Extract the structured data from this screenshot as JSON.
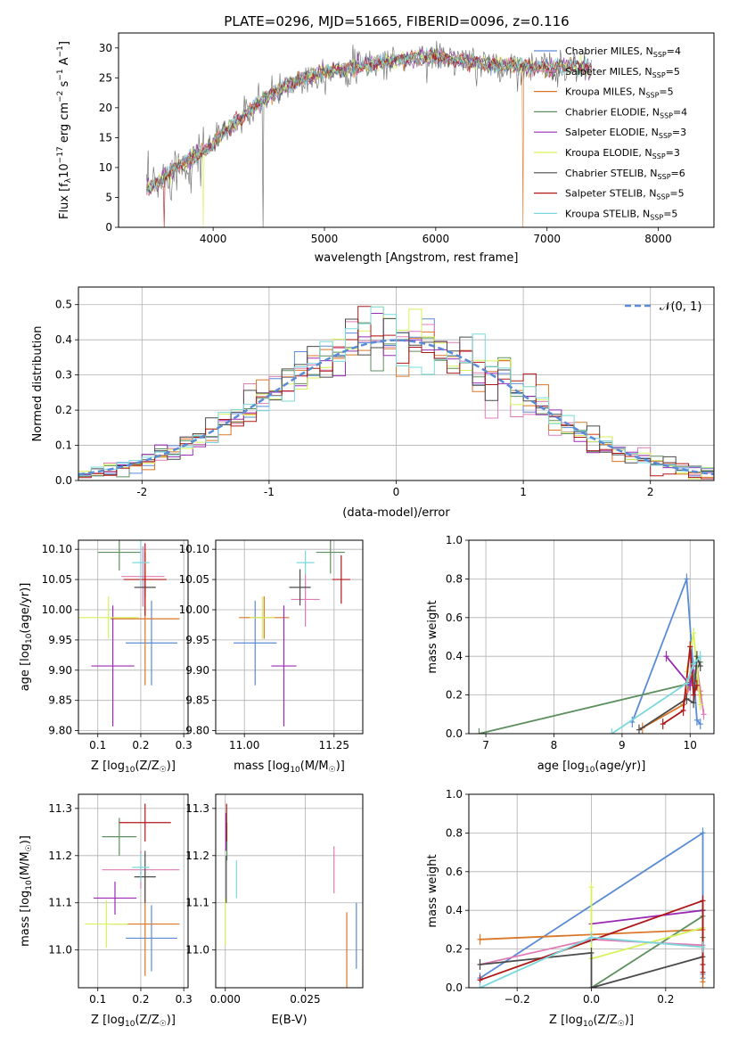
{
  "figure": {
    "title": "PLATE=0296, MJD=51665, FIBERID=0096, z=0.116"
  },
  "models": [
    {
      "name": "Chabrier MILES",
      "nssp": "4",
      "color": "#5a8bd6"
    },
    {
      "name": "Salpeter MILES",
      "nssp": "5",
      "color": "#e07bb5"
    },
    {
      "name": "Kroupa MILES",
      "nssp": "5",
      "color": "#d9772a"
    },
    {
      "name": "Chabrier ELODIE",
      "nssp": "4",
      "color": "#5e8f5e"
    },
    {
      "name": "Salpeter ELODIE",
      "nssp": "3",
      "color": "#9a2bb5"
    },
    {
      "name": "Kroupa ELODIE",
      "nssp": "3",
      "color": "#d6f25a"
    },
    {
      "name": "Chabrier STELIB",
      "nssp": "6",
      "color": "#4a4a4a"
    },
    {
      "name": "Salpeter STELIB",
      "nssp": "5",
      "color": "#b01818"
    },
    {
      "name": "Kroupa STELIB",
      "nssp": "5",
      "color": "#7ad8dc"
    }
  ],
  "chart_data": [
    {
      "id": "spectrum",
      "type": "line",
      "title": "PLATE=0296, MJD=51665, FIBERID=0096, z=0.116",
      "xlabel": "wavelength [Angstrom, rest frame]",
      "ylabel_main": "Flux [f",
      "ylabel_sub": "λ",
      "ylabel_rest": "10",
      "ylabel_exp1": "−17",
      "ylabel_mid": " erg cm",
      "ylabel_exp2": "−2",
      "ylabel_mid2": " s",
      "ylabel_exp3": "−1",
      "ylabel_mid3": " A",
      "ylabel_exp4": "−1",
      "ylabel_end": "]",
      "xlim": [
        3150,
        8500
      ],
      "ylim": [
        0,
        32.5
      ],
      "xticks": [
        4000,
        5000,
        6000,
        7000,
        8000
      ],
      "yticks": [
        0,
        5,
        10,
        15,
        20,
        25,
        30
      ],
      "continuum": {
        "wavelength": [
          3400,
          3500,
          3600,
          3700,
          3800,
          3900,
          4000,
          4100,
          4200,
          4300,
          4400,
          4500,
          4600,
          4700,
          4800,
          4900,
          5000,
          5200,
          5400,
          5600,
          5800,
          6000,
          6200,
          6400,
          6600,
          6800,
          7000,
          7200,
          7400
        ],
        "flux": [
          6.5,
          7.2,
          9.0,
          10.5,
          11.5,
          12.5,
          14.0,
          16.0,
          17.5,
          19.0,
          20.5,
          22.0,
          23.0,
          24.0,
          24.8,
          25.5,
          26.0,
          26.5,
          27.2,
          27.8,
          28.3,
          28.5,
          28.0,
          27.5,
          27.0,
          27.0,
          26.5,
          27.0,
          26.5
        ]
      },
      "legend_position": "upper right"
    },
    {
      "id": "residuals",
      "type": "step",
      "xlabel": "(data-model)/error",
      "ylabel": "Normed distribution",
      "xlim": [
        -2.5,
        2.5
      ],
      "ylim": [
        0,
        0.55
      ],
      "xticks": [
        -2,
        -1,
        0,
        1,
        2
      ],
      "yticks": [
        0.0,
        0.1,
        0.2,
        0.3,
        0.4,
        0.5
      ],
      "bin_width": 0.1,
      "reference_curve": "N(0,1)",
      "legend": "𝒩(0, 1)",
      "legend_position": "upper right",
      "grid": true
    },
    {
      "id": "age-vs-Z",
      "type": "errorbar",
      "xlabel": "Z [log",
      "xlabel_sub": "10",
      "xlabel_rest": "(Z/Z",
      "xlabel_sun": "☉",
      "xlabel_end": ")]",
      "ylabel": "age  [log",
      "ylabel_sub": "10",
      "ylabel_rest": "(age/yr)]",
      "xlim": [
        0.055,
        0.31
      ],
      "ylim": [
        9.795,
        10.115
      ],
      "xticks": [
        0.1,
        0.2,
        0.3
      ],
      "yticks": [
        9.8,
        9.85,
        9.9,
        9.95,
        10.0,
        10.05,
        10.1
      ],
      "points": [
        {
          "model": 0,
          "x": 0.225,
          "y": 9.945,
          "xerr": 0.06,
          "yerr": 0.07
        },
        {
          "model": 1,
          "x": 0.205,
          "y": 10.055,
          "xerr": 0.05,
          "yerr": 0.05
        },
        {
          "model": 2,
          "x": 0.21,
          "y": 9.985,
          "xerr": 0.08,
          "yerr": 0.11
        },
        {
          "model": 3,
          "x": 0.15,
          "y": 10.095,
          "xerr": 0.05,
          "yerr": 0.03
        },
        {
          "model": 4,
          "x": 0.135,
          "y": 9.907,
          "xerr": 0.05,
          "yerr": 0.1
        },
        {
          "model": 5,
          "x": 0.125,
          "y": 9.987,
          "xerr": 0.07,
          "yerr": 0.035
        },
        {
          "model": 6,
          "x": 0.21,
          "y": 10.037,
          "xerr": 0.025,
          "yerr": 0.015
        },
        {
          "model": 7,
          "x": 0.21,
          "y": 10.05,
          "xerr": 0.05,
          "yerr": 0.06
        },
        {
          "model": 8,
          "x": 0.2,
          "y": 10.078,
          "xerr": 0.02,
          "yerr": 0.04
        }
      ],
      "grid": true
    },
    {
      "id": "age-vs-mass",
      "type": "errorbar",
      "xlabel": "mass [log",
      "xlabel_sub": "10",
      "xlabel_rest": "(M/M",
      "xlabel_sun": "☉",
      "xlabel_end": ")]",
      "xlim": [
        10.92,
        11.33
      ],
      "ylim": [
        9.795,
        10.115
      ],
      "xticks": [
        11.0,
        11.25
      ],
      "xticklabels": [
        "11.00",
        "11.25"
      ],
      "yticks": [
        9.8,
        9.85,
        9.9,
        9.95,
        10.0,
        10.05,
        10.1
      ],
      "points": [
        {
          "model": 0,
          "x": 11.03,
          "y": 9.945,
          "xerr": 0.06,
          "yerr": 0.07
        },
        {
          "model": 1,
          "x": 11.17,
          "y": 10.017,
          "xerr": 0.04,
          "yerr": 0.045
        },
        {
          "model": 2,
          "x": 11.055,
          "y": 9.987,
          "xerr": 0.07,
          "yerr": 0.035
        },
        {
          "model": 3,
          "x": 11.24,
          "y": 10.095,
          "xerr": 0.04,
          "yerr": 0.035
        },
        {
          "model": 4,
          "x": 11.11,
          "y": 9.907,
          "xerr": 0.035,
          "yerr": 0.1
        },
        {
          "model": 5,
          "x": 11.05,
          "y": 9.987,
          "xerr": 0.035,
          "yerr": 0.035
        },
        {
          "model": 6,
          "x": 11.155,
          "y": 10.037,
          "xerr": 0.03,
          "yerr": 0.03
        },
        {
          "model": 7,
          "x": 11.27,
          "y": 10.05,
          "xerr": 0.025,
          "yerr": 0.04
        },
        {
          "model": 8,
          "x": 11.17,
          "y": 10.078,
          "xerr": 0.025,
          "yerr": 0.02
        }
      ],
      "grid": true
    },
    {
      "id": "weight-vs-age",
      "type": "line",
      "xlabel": "age  [log",
      "xlabel_sub": "10",
      "xlabel_rest": "(age/yr)]",
      "ylabel": "mass weight",
      "xlim": [
        6.75,
        10.35
      ],
      "ylim": [
        0,
        1.0
      ],
      "xticks": [
        7,
        8,
        9,
        10
      ],
      "yticks": [
        0.0,
        0.2,
        0.4,
        0.6,
        0.8,
        1.0
      ],
      "series": [
        {
          "model": 0,
          "x": [
            9.15,
            9.95,
            10.1,
            10.15
          ],
          "y": [
            0.06,
            0.8,
            0.07,
            0.05
          ]
        },
        {
          "model": 1,
          "x": [
            9.9,
            10.0,
            10.1,
            10.15,
            10.2
          ],
          "y": [
            0.15,
            0.25,
            0.35,
            0.22,
            0.1
          ]
        },
        {
          "model": 2,
          "x": [
            9.3,
            9.9,
            10.0,
            10.1,
            10.15
          ],
          "y": [
            0.03,
            0.15,
            0.28,
            0.27,
            0.2
          ]
        },
        {
          "model": 3,
          "x": [
            6.9,
            10.0,
            10.15
          ],
          "y": [
            0.0,
            0.26,
            0.37
          ]
        },
        {
          "model": 4,
          "x": [
            9.65,
            10.0,
            10.05
          ],
          "y": [
            0.4,
            0.25,
            0.35
          ]
        },
        {
          "model": 5,
          "x": [
            9.95,
            10.05,
            10.15
          ],
          "y": [
            0.32,
            0.52,
            0.15
          ]
        },
        {
          "model": 6,
          "x": [
            9.25,
            9.95,
            10.05,
            10.1,
            10.15
          ],
          "y": [
            0.02,
            0.18,
            0.16,
            0.4,
            0.35
          ]
        },
        {
          "model": 7,
          "x": [
            9.6,
            9.9,
            10.0,
            10.05,
            10.1
          ],
          "y": [
            0.05,
            0.12,
            0.45,
            0.2,
            0.25
          ]
        },
        {
          "model": 8,
          "x": [
            8.85,
            9.95,
            10.05,
            10.15
          ],
          "y": [
            0.0,
            0.26,
            0.36,
            0.4
          ]
        }
      ],
      "grid": true
    },
    {
      "id": "mass-vs-Z",
      "type": "errorbar",
      "xlabel": "Z [log",
      "xlabel_sub": "10",
      "xlabel_rest": "(Z/Z",
      "xlabel_sun": "☉",
      "xlabel_end": ")]",
      "ylabel": "mass [log",
      "ylabel_sub": "10",
      "ylabel_rest": "(M/M",
      "ylabel_sun": "☉",
      "ylabel_end": ")]",
      "xlim": [
        0.055,
        0.31
      ],
      "ylim": [
        10.92,
        11.33
      ],
      "xticks": [
        0.1,
        0.2,
        0.3
      ],
      "yticks": [
        11.0,
        11.1,
        11.2,
        11.3
      ],
      "points": [
        {
          "model": 0,
          "x": 0.225,
          "y": 11.025,
          "xerr": 0.06,
          "yerr": 0.07
        },
        {
          "model": 1,
          "x": 0.2,
          "y": 11.17,
          "xerr": 0.09,
          "yerr": 0.04
        },
        {
          "model": 2,
          "x": 0.21,
          "y": 11.055,
          "xerr": 0.08,
          "yerr": 0.11
        },
        {
          "model": 3,
          "x": 0.15,
          "y": 11.24,
          "xerr": 0.04,
          "yerr": 0.04
        },
        {
          "model": 4,
          "x": 0.14,
          "y": 11.11,
          "xerr": 0.05,
          "yerr": 0.035
        },
        {
          "model": 5,
          "x": 0.12,
          "y": 11.055,
          "xerr": 0.05,
          "yerr": 0.05
        },
        {
          "model": 6,
          "x": 0.21,
          "y": 11.155,
          "xerr": 0.025,
          "yerr": 0.055
        },
        {
          "model": 7,
          "x": 0.21,
          "y": 11.27,
          "xerr": 0.06,
          "yerr": 0.04
        },
        {
          "model": 8,
          "x": 0.2,
          "y": 11.175,
          "xerr": 0.02,
          "yerr": 0.03
        }
      ],
      "grid": true
    },
    {
      "id": "mass-vs-ebv",
      "type": "errorbar",
      "xlabel": "E(B-V)",
      "xlim": [
        -0.003,
        0.043
      ],
      "ylim": [
        10.92,
        11.33
      ],
      "xticks": [
        0.0,
        0.025
      ],
      "xticklabels": [
        "0.000",
        "0.025"
      ],
      "yticks": [
        11.0,
        11.1,
        11.2,
        11.3
      ],
      "points": [
        {
          "model": 0,
          "x": 0.041,
          "y": 11.03,
          "xerr": 0,
          "yerr": 0.07
        },
        {
          "model": 1,
          "x": 0.034,
          "y": 11.17,
          "xerr": 0,
          "yerr": 0.05
        },
        {
          "model": 2,
          "x": 0.038,
          "y": 11.0,
          "xerr": 0,
          "yerr": 0.08
        },
        {
          "model": 3,
          "x": 0.0005,
          "y": 11.23,
          "xerr": 0,
          "yerr": 0.04
        },
        {
          "model": 4,
          "x": 0.0002,
          "y": 11.25,
          "xerr": 0,
          "yerr": 0.04
        },
        {
          "model": 5,
          "x": 0.0,
          "y": 11.06,
          "xerr": 0,
          "yerr": 0.05
        },
        {
          "model": 6,
          "x": 0.0003,
          "y": 11.15,
          "xerr": 0,
          "yerr": 0.05
        },
        {
          "model": 7,
          "x": 0.0004,
          "y": 11.27,
          "xerr": 0,
          "yerr": 0.04
        },
        {
          "model": 8,
          "x": 0.0035,
          "y": 11.15,
          "xerr": 0,
          "yerr": 0.04
        }
      ],
      "grid": true
    },
    {
      "id": "weight-vs-Z",
      "type": "line",
      "xlabel": "Z [log",
      "xlabel_sub": "10",
      "xlabel_rest": "(Z/Z",
      "xlabel_sun": "☉",
      "xlabel_end": ")]",
      "ylabel": "mass weight",
      "xlim": [
        -0.33,
        0.33
      ],
      "ylim": [
        0,
        1.0
      ],
      "xticks": [
        -0.2,
        0.0,
        0.2
      ],
      "xticklabels": [
        "−0.2",
        "0.0",
        "0.2"
      ],
      "yticks": [
        0.0,
        0.2,
        0.4,
        0.6,
        0.8,
        1.0
      ],
      "series": [
        {
          "model": 0,
          "x": [
            -0.3,
            0.3,
            0.3,
            0.3
          ],
          "y": [
            0.05,
            0.8,
            0.07,
            0.05
          ]
        },
        {
          "model": 1,
          "x": [
            -0.3,
            0.0,
            0.3
          ],
          "y": [
            0.12,
            0.25,
            0.22
          ]
        },
        {
          "model": 2,
          "x": [
            -0.3,
            0.3,
            0.3
          ],
          "y": [
            0.25,
            0.3,
            0.03
          ]
        },
        {
          "model": 3,
          "x": [
            0.0,
            0.3,
            0.3
          ],
          "y": [
            0.0,
            0.37,
            0.26
          ]
        },
        {
          "model": 4,
          "x": [
            0.0,
            0.3
          ],
          "y": [
            0.33,
            0.4
          ]
        },
        {
          "model": 5,
          "x": [
            0.0,
            0.0,
            0.3
          ],
          "y": [
            0.52,
            0.15,
            0.31
          ]
        },
        {
          "model": 6,
          "x": [
            -0.3,
            0.0,
            0.0,
            0.3,
            0.3
          ],
          "y": [
            0.12,
            0.18,
            0.0,
            0.16,
            0.4
          ]
        },
        {
          "model": 7,
          "x": [
            -0.3,
            0.3,
            0.3,
            0.3
          ],
          "y": [
            0.04,
            0.45,
            0.12,
            0.08
          ]
        },
        {
          "model": 8,
          "x": [
            -0.3,
            0.0,
            0.3
          ],
          "y": [
            0.0,
            0.26,
            0.21
          ]
        }
      ],
      "grid": true
    }
  ]
}
